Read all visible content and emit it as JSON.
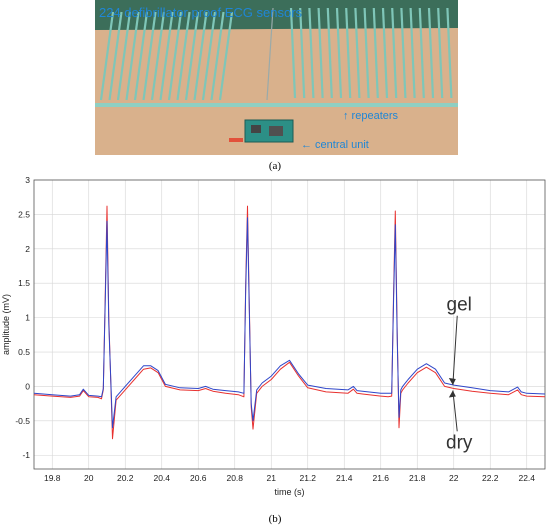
{
  "photo": {
    "title_text": "224 defibrillator proof ECG sensors",
    "repeaters_text": "↑ repeaters",
    "central_unit_text": "← central unit",
    "colors": {
      "board": "#d9b18c",
      "wall": "#3c6e5a",
      "label": "#1f86d6",
      "sensor": "#7fc6b8"
    }
  },
  "captions": {
    "a": "(a)",
    "b": "(b)"
  },
  "chart_data": {
    "type": "line",
    "title": "",
    "xlabel": "time (s)",
    "ylabel": "amplitude (mV)",
    "xlim": [
      19.7,
      22.5
    ],
    "ylim": [
      -1.2,
      3
    ],
    "x_ticks": [
      19.8,
      20,
      20.2,
      20.4,
      20.6,
      20.8,
      21,
      21.2,
      21.4,
      21.6,
      21.8,
      22,
      22.2,
      22.4
    ],
    "x_tick_labels": [
      "19.8",
      "20",
      "20.2",
      "20.4",
      "20.6",
      "20.8",
      "21",
      "21.2",
      "21.4",
      "21.6",
      "21.8",
      "22",
      "22.2",
      "22.4"
    ],
    "y_ticks": [
      -1,
      -0.5,
      0,
      0.5,
      1,
      1.5,
      2,
      2.5,
      3
    ],
    "y_tick_labels": [
      "-1",
      "-0.5",
      "0",
      "0.5",
      "1",
      "1.5",
      "2",
      "2.5",
      "3"
    ],
    "grid": true,
    "series": [
      {
        "color": "#e8312f",
        "x": [
          19.7,
          19.8,
          19.9,
          19.95,
          19.97,
          19.99,
          20.0,
          20.05,
          20.07,
          20.08,
          20.09,
          20.1,
          20.11,
          20.13,
          20.15,
          20.2,
          20.25,
          20.3,
          20.34,
          20.38,
          20.42,
          20.5,
          20.6,
          20.64,
          20.66,
          20.68,
          20.75,
          20.82,
          20.85,
          20.86,
          20.87,
          20.88,
          20.89,
          20.9,
          20.92,
          20.95,
          21.0,
          21.05,
          21.1,
          21.15,
          21.2,
          21.3,
          21.42,
          21.45,
          21.47,
          21.5,
          21.6,
          21.64,
          21.66,
          21.67,
          21.68,
          21.69,
          21.7,
          21.71,
          21.72,
          21.75,
          21.8,
          21.85,
          21.9,
          21.95,
          22.0,
          22.1,
          22.2,
          22.3,
          22.35,
          22.37,
          22.4,
          22.5
        ],
        "y": [
          -0.12,
          -0.14,
          -0.16,
          -0.14,
          -0.06,
          -0.12,
          -0.15,
          -0.16,
          -0.18,
          -0.05,
          1.3,
          2.62,
          1.0,
          -0.76,
          -0.2,
          -0.05,
          0.1,
          0.25,
          0.27,
          0.2,
          0.0,
          -0.05,
          -0.06,
          -0.03,
          -0.05,
          -0.07,
          -0.1,
          -0.12,
          -0.15,
          1.5,
          2.62,
          1.2,
          -0.3,
          -0.62,
          -0.1,
          0.0,
          0.1,
          0.25,
          0.35,
          0.15,
          -0.02,
          -0.08,
          -0.1,
          -0.04,
          -0.1,
          -0.11,
          -0.14,
          -0.15,
          -0.14,
          1.3,
          2.55,
          0.8,
          -0.6,
          -0.1,
          -0.05,
          0.05,
          0.2,
          0.28,
          0.2,
          0.0,
          -0.03,
          -0.07,
          -0.1,
          -0.12,
          -0.05,
          -0.12,
          -0.14,
          -0.15
        ]
      },
      {
        "color": "#2f46c9",
        "x": [
          19.7,
          19.8,
          19.9,
          19.95,
          19.97,
          19.99,
          20.0,
          20.05,
          20.07,
          20.08,
          20.09,
          20.1,
          20.11,
          20.13,
          20.15,
          20.2,
          20.25,
          20.3,
          20.34,
          20.38,
          20.42,
          20.5,
          20.6,
          20.64,
          20.66,
          20.68,
          20.75,
          20.82,
          20.85,
          20.86,
          20.87,
          20.88,
          20.89,
          20.9,
          20.92,
          20.95,
          21.0,
          21.05,
          21.1,
          21.15,
          21.2,
          21.3,
          21.42,
          21.45,
          21.47,
          21.5,
          21.6,
          21.64,
          21.66,
          21.67,
          21.68,
          21.69,
          21.7,
          21.71,
          21.72,
          21.75,
          21.8,
          21.85,
          21.9,
          21.95,
          22.0,
          22.1,
          22.2,
          22.3,
          22.35,
          22.37,
          22.4,
          22.5
        ],
        "y": [
          -0.1,
          -0.12,
          -0.14,
          -0.12,
          -0.04,
          -0.1,
          -0.13,
          -0.14,
          -0.15,
          -0.03,
          1.2,
          2.4,
          0.9,
          -0.6,
          -0.15,
          0.0,
          0.15,
          0.3,
          0.3,
          0.23,
          0.03,
          -0.02,
          -0.03,
          0.0,
          -0.02,
          -0.04,
          -0.06,
          -0.08,
          -0.1,
          1.4,
          2.45,
          1.1,
          -0.25,
          -0.5,
          -0.05,
          0.05,
          0.15,
          0.3,
          0.38,
          0.18,
          0.02,
          -0.03,
          -0.05,
          0.0,
          -0.06,
          -0.07,
          -0.1,
          -0.1,
          -0.1,
          1.2,
          2.35,
          0.7,
          -0.45,
          -0.05,
          0.0,
          0.1,
          0.25,
          0.33,
          0.25,
          0.05,
          0.02,
          -0.02,
          -0.06,
          -0.08,
          -0.01,
          -0.08,
          -0.1,
          -0.11
        ]
      }
    ],
    "annotations": [
      {
        "text": "gel",
        "x": 22.03,
        "y": 1.1
      },
      {
        "text": "dry",
        "x": 22.03,
        "y": -0.9
      }
    ]
  }
}
